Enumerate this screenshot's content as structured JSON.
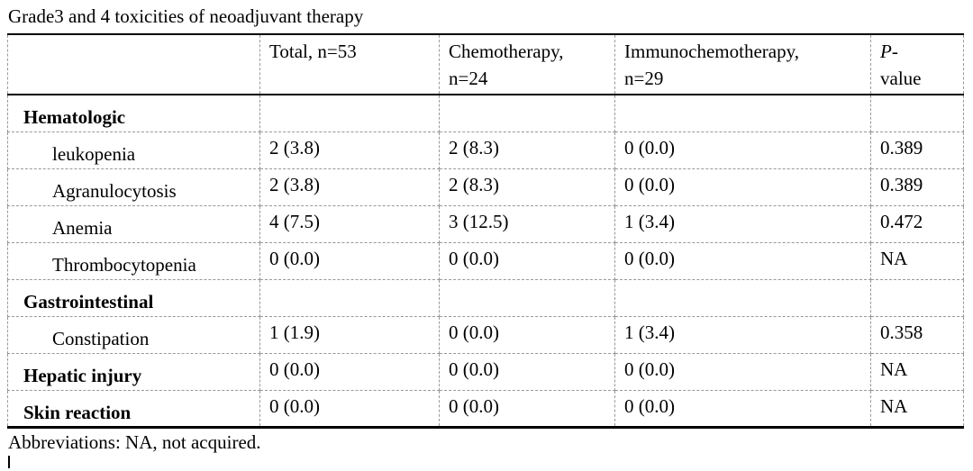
{
  "title": "Grade3 and 4 toxicities of neoadjuvant therapy",
  "table": {
    "header": {
      "empty": "",
      "total": "Total, n=53",
      "chemotherapy": "Chemotherapy,\nn=24",
      "immunochemotherapy": "Immunochemotherapy,\nn=29",
      "p_italic": "P",
      "p_dash": "-",
      "p_line2": "value"
    },
    "rows": [
      {
        "label": "Hematologic",
        "style": "category",
        "total": "",
        "chemo": "",
        "immuno": "",
        "p": ""
      },
      {
        "label": "leukopenia",
        "style": "item",
        "total": "2 (3.8)",
        "chemo": "2 (8.3)",
        "immuno": "0 (0.0)",
        "p": "0.389"
      },
      {
        "label": "Agranulocytosis",
        "style": "item",
        "total": "2 (3.8)",
        "chemo": "2 (8.3)",
        "immuno": "0 (0.0)",
        "p": "0.389"
      },
      {
        "label": "Anemia",
        "style": "item",
        "total": "4 (7.5)",
        "chemo": "3 (12.5)",
        "immuno": "1 (3.4)",
        "p": "0.472"
      },
      {
        "label": "Thrombocytopenia",
        "style": "item",
        "total": "0 (0.0)",
        "chemo": "0 (0.0)",
        "immuno": "0 (0.0)",
        "p": "NA"
      },
      {
        "label": "Gastrointestinal",
        "style": "category",
        "total": "",
        "chemo": "",
        "immuno": "",
        "p": ""
      },
      {
        "label": "Constipation",
        "style": "item",
        "total": "1 (1.9)",
        "chemo": "0 (0.0)",
        "immuno": "1 (3.4)",
        "p": "0.358"
      },
      {
        "label": "Hepatic injury",
        "style": "category",
        "total": "0 (0.0)",
        "chemo": "0 (0.0)",
        "immuno": "0 (0.0)",
        "p": "NA"
      },
      {
        "label": "Skin reaction",
        "style": "category",
        "total": "0 (0.0)",
        "chemo": "0 (0.0)",
        "immuno": "0 (0.0)",
        "p": "NA"
      }
    ]
  },
  "footer": "Abbreviations: NA, not acquired."
}
